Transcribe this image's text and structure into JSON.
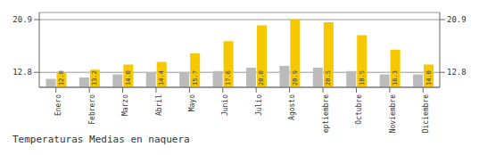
{
  "chart_data": {
    "type": "bar",
    "title": "Temperaturas Medias en naquera",
    "categories": [
      "Enero",
      "Febrero",
      "Marzo",
      "Abril",
      "Mayo",
      "Junio",
      "Julio",
      "Agosto",
      "Septiembre",
      "Octubre",
      "Noviembre",
      "Diciembre"
    ],
    "series": [
      {
        "color": "#BBBBBB",
        "values": [
          11.8,
          12.0,
          12.5,
          12.8,
          12.8,
          13.0,
          13.5,
          13.8,
          13.5,
          13.0,
          12.5,
          12.5
        ]
      },
      {
        "color": "#F5C800",
        "values": [
          12.8,
          13.2,
          14.0,
          14.4,
          15.7,
          17.6,
          20.0,
          20.9,
          20.5,
          18.5,
          16.3,
          14.0
        ],
        "data_labels": true,
        "value_labels": [
          "12.8",
          "13.2",
          "14.0",
          "14.4",
          "15.7",
          "17.6",
          "20.0",
          "20.9",
          "20.5",
          "18.5",
          "16.3",
          "14.0"
        ]
      }
    ],
    "ylim": [
      10.5,
      22.0
    ],
    "yticks": [
      12.8,
      20.9
    ],
    "y2lim": [
      10.5,
      22.0
    ],
    "y2ticks": [
      12.8,
      20.9
    ],
    "grid": true
  }
}
